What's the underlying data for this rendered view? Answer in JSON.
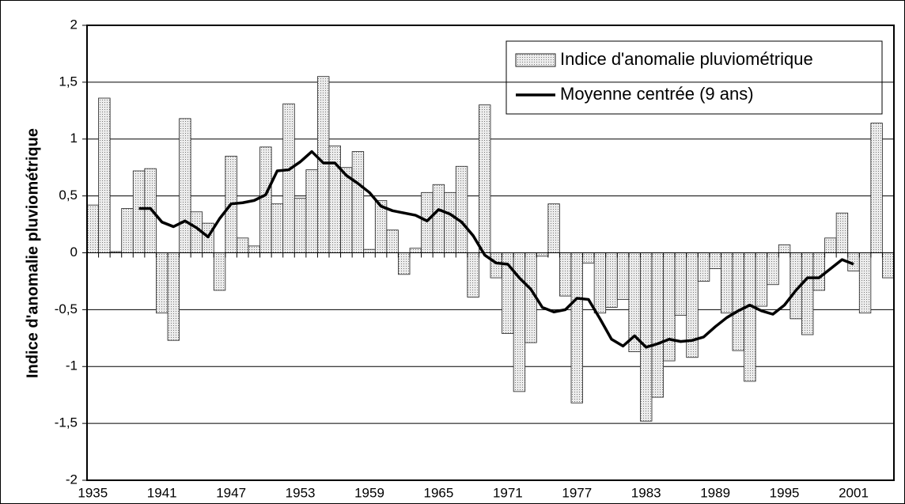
{
  "chart_data": {
    "type": "bar",
    "ylabel": "Indice d'anomalie pluviométrique",
    "categories": [
      "1935",
      null,
      null,
      null,
      null,
      null,
      "1941",
      null,
      null,
      null,
      null,
      null,
      "1947",
      null,
      null,
      null,
      null,
      null,
      "1953",
      null,
      null,
      null,
      null,
      null,
      "1959",
      null,
      null,
      null,
      null,
      null,
      "1965",
      null,
      null,
      null,
      null,
      null,
      "1971",
      null,
      null,
      null,
      null,
      null,
      "1977",
      null,
      null,
      null,
      null,
      null,
      "1983",
      null,
      null,
      null,
      null,
      null,
      "1989",
      null,
      null,
      null,
      null,
      null,
      "1995",
      null,
      null,
      null,
      null,
      null,
      "2001",
      null,
      null,
      null
    ],
    "series": [
      {
        "name": "Indice d'anomalie pluviométrique",
        "type": "bar",
        "color": "#c8c8c8",
        "values": [
          0.42,
          1.36,
          0.01,
          0.39,
          0.72,
          0.74,
          -0.53,
          -0.77,
          1.18,
          0.36,
          0.26,
          -0.33,
          0.85,
          0.13,
          0.06,
          0.93,
          0.43,
          1.31,
          0.48,
          0.73,
          1.55,
          0.94,
          0.75,
          0.89,
          0.03,
          0.46,
          0.2,
          -0.19,
          0.04,
          0.53,
          0.6,
          0.53,
          0.76,
          -0.39,
          1.3,
          -0.22,
          -0.71,
          -1.22,
          -0.79,
          -0.03,
          0.43,
          -0.38,
          -1.32,
          -0.09,
          -0.53,
          -0.48,
          -0.41,
          -0.87,
          -1.48,
          -1.27,
          -0.95,
          -0.55,
          -0.92,
          -0.25,
          -0.14,
          -0.53,
          -0.86,
          -1.13,
          -0.47,
          -0.28,
          0.07,
          -0.58,
          -0.72,
          -0.33,
          0.13,
          0.35,
          -0.16,
          -0.53,
          1.14,
          -0.22
        ]
      },
      {
        "name": "Moyenne centrée (9 ans)",
        "type": "line",
        "color": "#000000",
        "values": [
          null,
          null,
          null,
          null,
          0.39,
          0.39,
          0.27,
          0.23,
          0.28,
          0.22,
          0.14,
          0.3,
          0.43,
          0.44,
          0.46,
          0.51,
          0.72,
          0.73,
          0.8,
          0.89,
          0.79,
          0.79,
          0.68,
          0.61,
          0.53,
          0.41,
          0.37,
          0.35,
          0.33,
          0.28,
          0.38,
          0.34,
          0.27,
          0.15,
          -0.02,
          -0.09,
          -0.1,
          -0.22,
          -0.32,
          -0.48,
          -0.52,
          -0.5,
          -0.4,
          -0.41,
          -0.58,
          -0.76,
          -0.82,
          -0.73,
          -0.83,
          -0.8,
          -0.76,
          -0.78,
          -0.77,
          -0.74,
          -0.65,
          -0.57,
          -0.51,
          -0.46,
          -0.51,
          -0.54,
          -0.46,
          -0.33,
          -0.22,
          -0.22,
          -0.14,
          -0.06,
          -0.1,
          null,
          null,
          null
        ]
      }
    ],
    "ylim": [
      -2,
      2
    ],
    "yticks": [
      -2,
      {
        "value": -1.5,
        "label": "-1,5"
      },
      -1,
      {
        "value": -0.5,
        "label": "-0,5"
      },
      0,
      {
        "value": 0.5,
        "label": "0,5"
      },
      1,
      {
        "value": 1.5,
        "label": "1,5"
      },
      2
    ],
    "grid": true,
    "legend": "upper right"
  }
}
